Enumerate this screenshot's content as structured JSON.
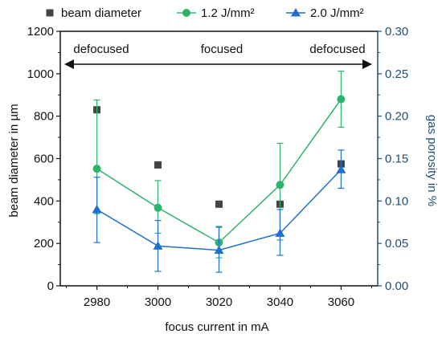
{
  "chart_data": {
    "type": "scatter",
    "title": "",
    "xlabel": "focus current in mA",
    "ylabel": "beam diameter in µm",
    "y2label": "gas porosity in %",
    "x": [
      2980,
      3000,
      3020,
      3040,
      3060
    ],
    "xticks": [
      2980,
      3000,
      3020,
      3040,
      3060
    ],
    "xlim": [
      2968,
      3072
    ],
    "ylim": [
      0,
      1200
    ],
    "yticks": [
      0,
      200,
      400,
      600,
      800,
      1000,
      1200
    ],
    "y2lim": [
      0.0,
      0.3
    ],
    "y2ticks": [
      "0.00",
      "0.05",
      "0.10",
      "0.15",
      "0.20",
      "0.25",
      "0.30"
    ],
    "grid": false,
    "legend_position": "top",
    "series": [
      {
        "name": "beam diameter",
        "axis": "left",
        "marker": "square",
        "line": false,
        "values": [
          830,
          570,
          385,
          385,
          575
        ]
      },
      {
        "name": "1.2 J/mm²",
        "axis": "right",
        "marker": "circle",
        "line": true,
        "values": [
          0.138,
          0.092,
          0.051,
          0.119,
          0.22
        ],
        "err_low": [
          0.085,
          0.062,
          0.033,
          0.054,
          0.187
        ],
        "err_high": [
          0.219,
          0.124,
          0.07,
          0.168,
          0.253
        ]
      },
      {
        "name": "2.0 J/mm²",
        "axis": "right",
        "marker": "triangle",
        "line": true,
        "values": [
          0.09,
          0.047,
          0.042,
          0.062,
          0.137
        ],
        "err_low": [
          0.051,
          0.017,
          0.016,
          0.036,
          0.115
        ],
        "err_high": [
          0.128,
          0.077,
          0.069,
          0.09,
          0.16
        ]
      }
    ],
    "annotations": {
      "left": "defocused",
      "center": "focused",
      "right": "defocused"
    }
  },
  "colors": {
    "beam": "#444444",
    "green": "#2db36b",
    "blue": "#1f6fcf",
    "right_axis": "#1f4e79",
    "axis": "#111111"
  }
}
